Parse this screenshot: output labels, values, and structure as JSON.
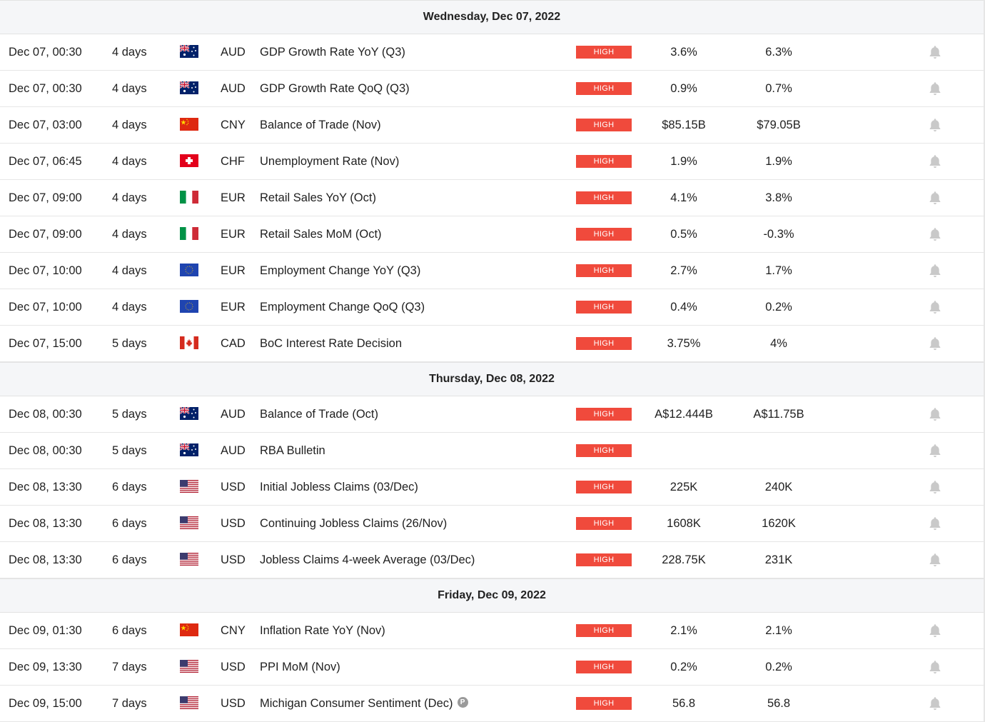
{
  "colors": {
    "impact_high": "#f04a3c",
    "header_bg": "#f5f6f8",
    "bell": "#c9c9c9"
  },
  "impact_label": "HIGH",
  "days": [
    {
      "title": "Wednesday, Dec 07, 2022",
      "events": [
        {
          "time": "Dec 07, 00:30",
          "countdown": "4 days",
          "flag": "AU",
          "currency": "AUD",
          "event": "GDP Growth Rate YoY (Q3)",
          "actual": "3.6%",
          "previous": "6.3%"
        },
        {
          "time": "Dec 07, 00:30",
          "countdown": "4 days",
          "flag": "AU",
          "currency": "AUD",
          "event": "GDP Growth Rate QoQ (Q3)",
          "actual": "0.9%",
          "previous": "0.7%"
        },
        {
          "time": "Dec 07, 03:00",
          "countdown": "4 days",
          "flag": "CN",
          "currency": "CNY",
          "event": "Balance of Trade (Nov)",
          "actual": "$85.15B",
          "previous": "$79.05B"
        },
        {
          "time": "Dec 07, 06:45",
          "countdown": "4 days",
          "flag": "CH",
          "currency": "CHF",
          "event": "Unemployment Rate (Nov)",
          "actual": "1.9%",
          "previous": "1.9%"
        },
        {
          "time": "Dec 07, 09:00",
          "countdown": "4 days",
          "flag": "IT",
          "currency": "EUR",
          "event": "Retail Sales YoY (Oct)",
          "actual": "4.1%",
          "previous": "3.8%"
        },
        {
          "time": "Dec 07, 09:00",
          "countdown": "4 days",
          "flag": "IT",
          "currency": "EUR",
          "event": "Retail Sales MoM (Oct)",
          "actual": "0.5%",
          "previous": "-0.3%"
        },
        {
          "time": "Dec 07, 10:00",
          "countdown": "4 days",
          "flag": "EU",
          "currency": "EUR",
          "event": "Employment Change YoY (Q3)",
          "actual": "2.7%",
          "previous": "1.7%"
        },
        {
          "time": "Dec 07, 10:00",
          "countdown": "4 days",
          "flag": "EU",
          "currency": "EUR",
          "event": "Employment Change QoQ (Q3)",
          "actual": "0.4%",
          "previous": "0.2%"
        },
        {
          "time": "Dec 07, 15:00",
          "countdown": "5 days",
          "flag": "CA",
          "currency": "CAD",
          "event": "BoC Interest Rate Decision",
          "actual": "3.75%",
          "previous": "4%"
        }
      ]
    },
    {
      "title": "Thursday, Dec 08, 2022",
      "events": [
        {
          "time": "Dec 08, 00:30",
          "countdown": "5 days",
          "flag": "AU",
          "currency": "AUD",
          "event": "Balance of Trade (Oct)",
          "actual": "A$12.444B",
          "previous": "A$11.75B"
        },
        {
          "time": "Dec 08, 00:30",
          "countdown": "5 days",
          "flag": "AU",
          "currency": "AUD",
          "event": "RBA Bulletin",
          "actual": "",
          "previous": ""
        },
        {
          "time": "Dec 08, 13:30",
          "countdown": "6 days",
          "flag": "US",
          "currency": "USD",
          "event": "Initial Jobless Claims (03/Dec)",
          "actual": "225K",
          "previous": "240K"
        },
        {
          "time": "Dec 08, 13:30",
          "countdown": "6 days",
          "flag": "US",
          "currency": "USD",
          "event": "Continuing Jobless Claims (26/Nov)",
          "actual": "1608K",
          "previous": "1620K"
        },
        {
          "time": "Dec 08, 13:30",
          "countdown": "6 days",
          "flag": "US",
          "currency": "USD",
          "event": "Jobless Claims 4-week Average (03/Dec)",
          "actual": "228.75K",
          "previous": "231K"
        }
      ]
    },
    {
      "title": "Friday, Dec 09, 2022",
      "events": [
        {
          "time": "Dec 09, 01:30",
          "countdown": "6 days",
          "flag": "CN",
          "currency": "CNY",
          "event": "Inflation Rate YoY (Nov)",
          "actual": "2.1%",
          "previous": "2.1%"
        },
        {
          "time": "Dec 09, 13:30",
          "countdown": "7 days",
          "flag": "US",
          "currency": "USD",
          "event": "PPI MoM (Nov)",
          "actual": "0.2%",
          "previous": "0.2%"
        },
        {
          "time": "Dec 09, 15:00",
          "countdown": "7 days",
          "flag": "US",
          "currency": "USD",
          "event": "Michigan Consumer Sentiment (Dec)",
          "actual": "56.8",
          "previous": "56.8",
          "badge": "P"
        }
      ]
    }
  ]
}
